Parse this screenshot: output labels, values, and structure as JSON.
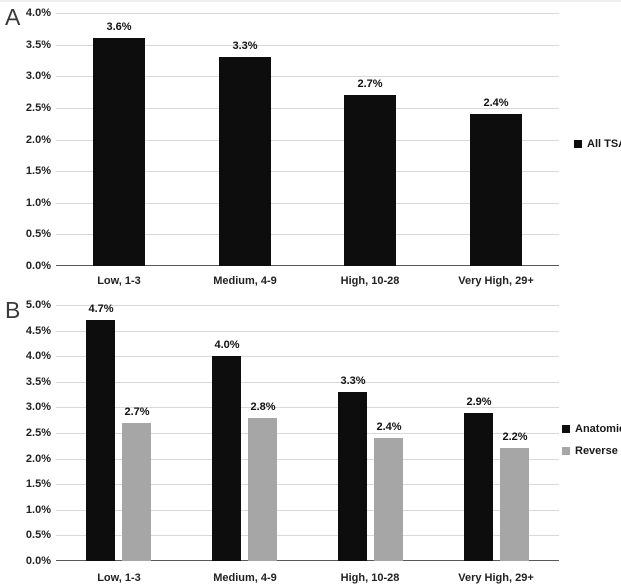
{
  "figure": {
    "background": "#ffffff",
    "gridline_color": "#d9d9d9",
    "axis_line_color": "#595959",
    "text_color": "#222222"
  },
  "chart_data": [
    {
      "type": "bar",
      "panel_label": "A",
      "title": "",
      "xlabel": "",
      "ylabel": "",
      "categories": [
        "Low, 1-3",
        "Medium, 4-9",
        "High, 10-28",
        "Very High, 29+"
      ],
      "series": [
        {
          "name": "All TSAs",
          "color": "#0d0d0d",
          "values": [
            3.6,
            3.3,
            2.7,
            2.4
          ],
          "value_labels": [
            "3.6%",
            "3.3%",
            "2.7%",
            "2.4%"
          ]
        }
      ],
      "ylim": [
        0,
        4.0
      ],
      "ytick_labels_top_down": [
        "4.0%",
        "3.5%",
        "3.0%",
        "2.5%",
        "2.0%",
        "1.5%",
        "1.0%",
        "0.5%",
        "0.0%"
      ],
      "grid": true,
      "legend_position": "right"
    },
    {
      "type": "bar",
      "panel_label": "B",
      "title": "",
      "xlabel": "",
      "ylabel": "",
      "categories": [
        "Low, 1-3",
        "Medium, 4-9",
        "High, 10-28",
        "Very High, 29+"
      ],
      "series": [
        {
          "name": "Anatomic",
          "color": "#0d0d0d",
          "values": [
            4.7,
            4.0,
            3.3,
            2.9
          ],
          "value_labels": [
            "4.7%",
            "4.0%",
            "3.3%",
            "2.9%"
          ]
        },
        {
          "name": "Reverse",
          "color": "#a6a6a6",
          "values": [
            2.7,
            2.8,
            2.4,
            2.2
          ],
          "value_labels": [
            "2.7%",
            "2.8%",
            "2.4%",
            "2.2%"
          ]
        }
      ],
      "ylim": [
        0,
        5.0
      ],
      "ytick_labels_top_down": [
        "5.0%",
        "4.5%",
        "4.0%",
        "3.5%",
        "3.0%",
        "2.5%",
        "2.0%",
        "1.5%",
        "1.0%",
        "0.5%",
        "0.0%"
      ],
      "grid": true,
      "legend_position": "right"
    }
  ]
}
